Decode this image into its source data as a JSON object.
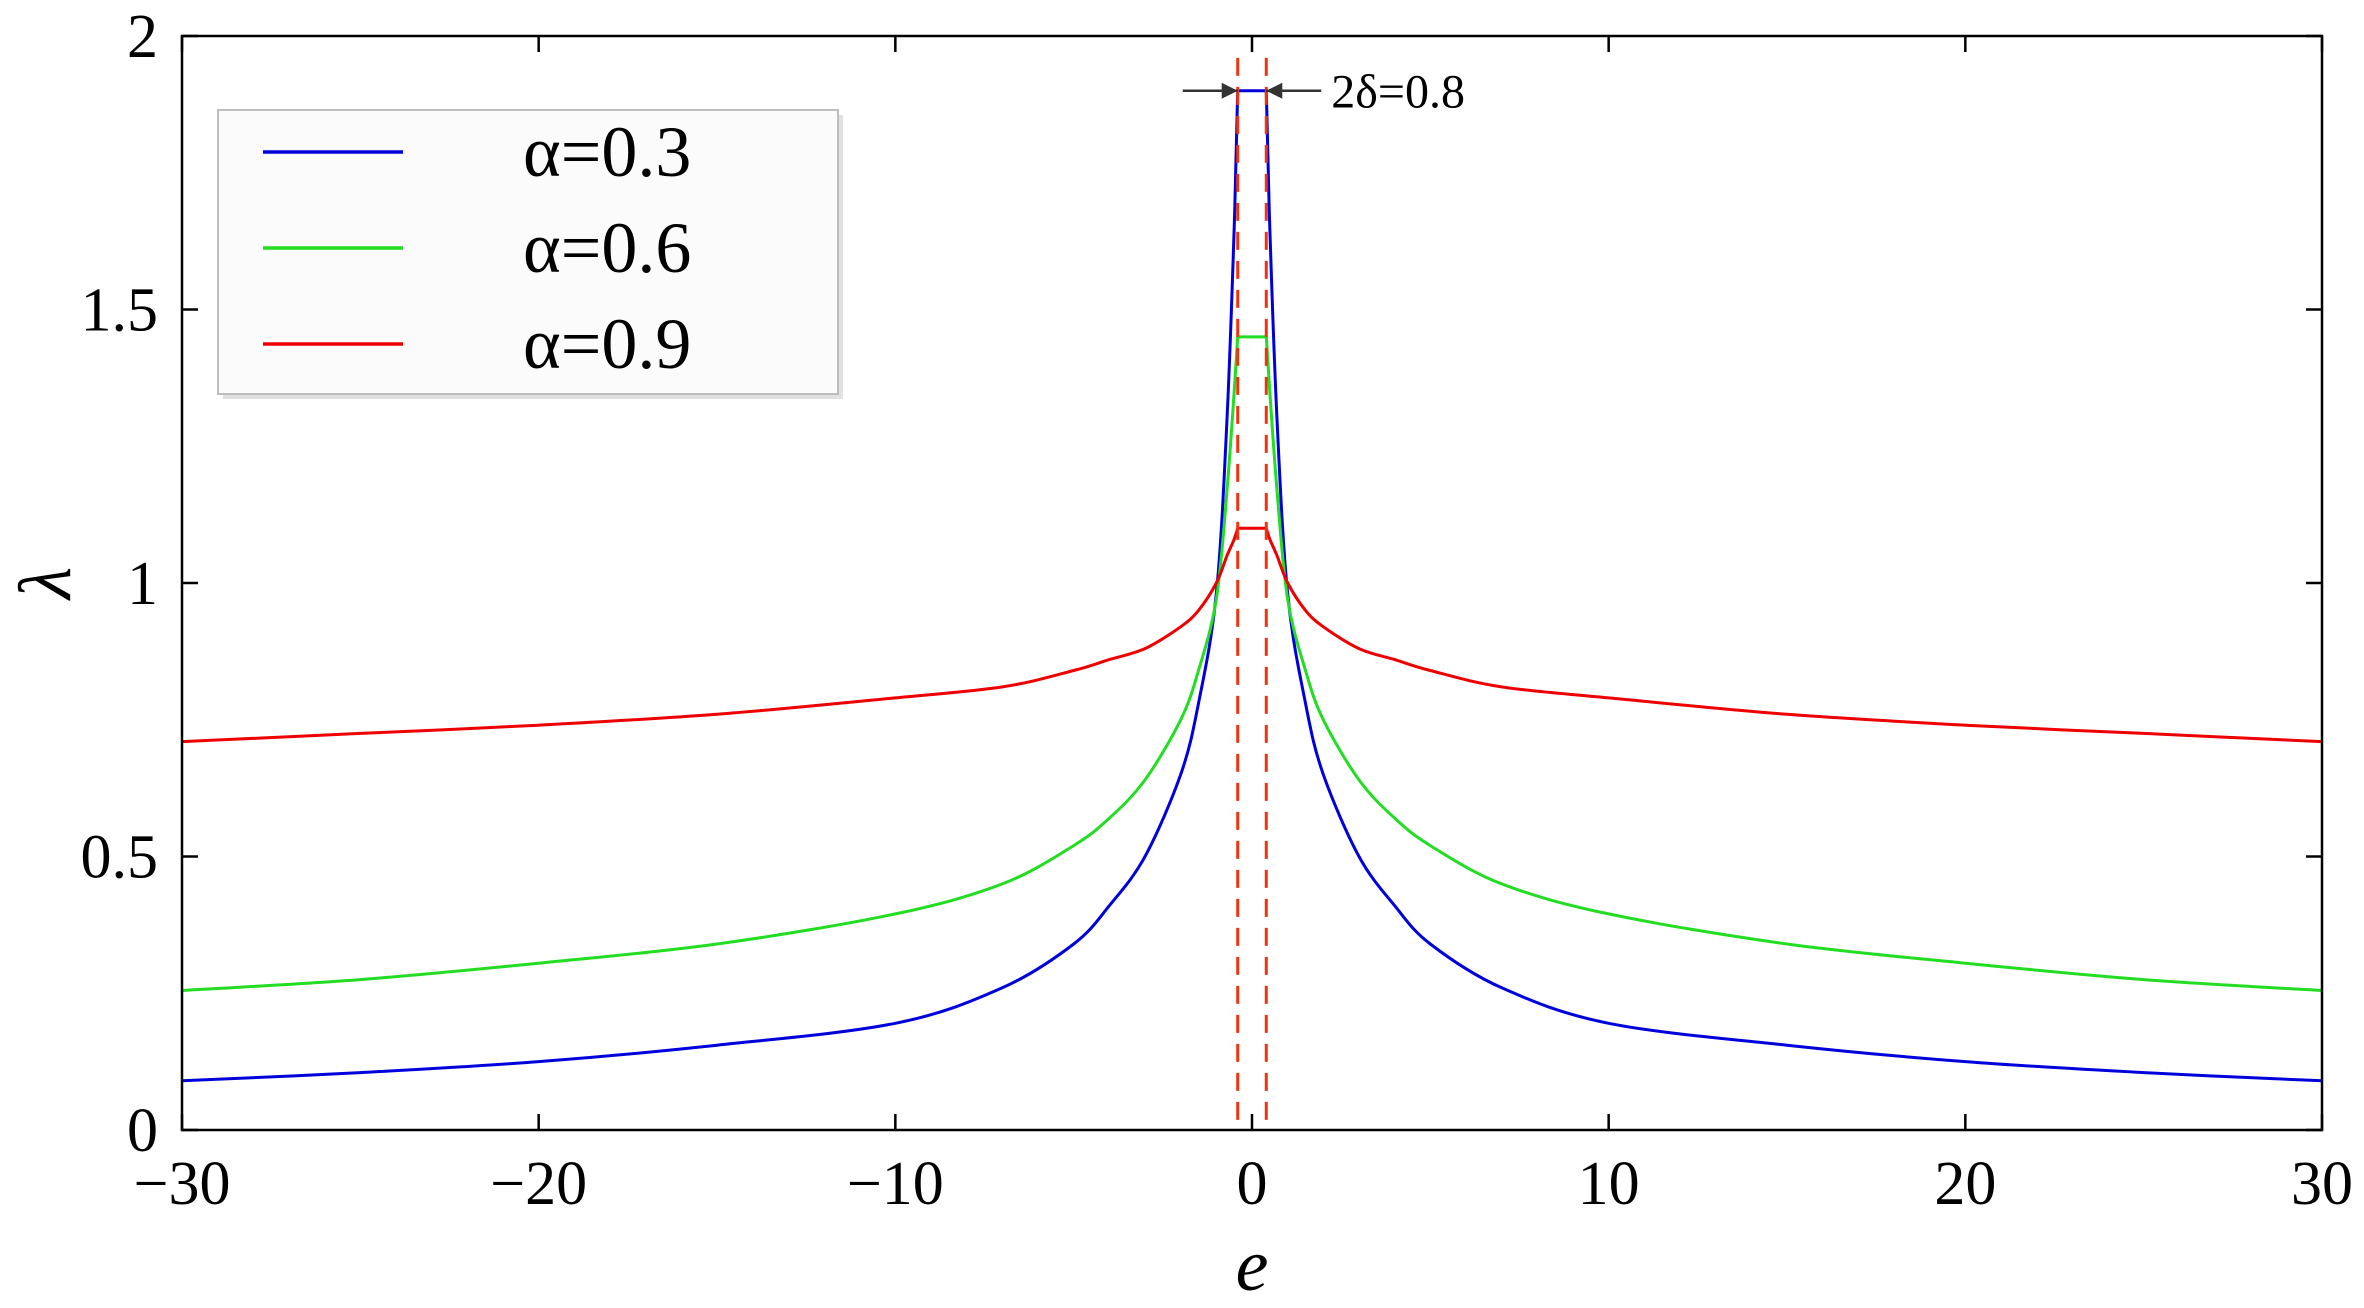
{
  "chart_data": {
    "type": "line",
    "title": "",
    "xlabel": "e",
    "ylabel": "λ",
    "xlim": [
      -30,
      30
    ],
    "ylim": [
      0,
      2
    ],
    "xticks": [
      -30,
      -20,
      -10,
      0,
      10,
      20,
      30
    ],
    "xtick_labels": [
      "−30",
      "−20",
      "−10",
      "0",
      "10",
      "20",
      "30"
    ],
    "yticks": [
      0,
      0.5,
      1,
      1.5,
      2
    ],
    "ytick_labels": [
      "0",
      "0.5",
      "1",
      "1.5",
      "2"
    ],
    "grid": false,
    "legend_position": "top-left",
    "delta": 0.4,
    "annotation": "2δ=0.8",
    "series": [
      {
        "name": "α=0.3",
        "color": "#0000dd",
        "style": "solid",
        "x": [
          -30,
          -25,
          -20,
          -15,
          -10,
          -7,
          -5,
          -4,
          -3,
          -2,
          -1.5,
          -1,
          -0.7,
          -0.5,
          -0.4,
          0.4,
          0.5,
          0.7,
          1,
          1.5,
          2,
          3,
          4,
          5,
          7,
          10,
          15,
          20,
          25,
          30
        ],
        "y": [
          0.09,
          0.105,
          0.125,
          0.155,
          0.195,
          0.26,
          0.34,
          0.41,
          0.5,
          0.65,
          0.78,
          0.98,
          1.3,
          1.65,
          1.9,
          1.9,
          1.65,
          1.3,
          0.98,
          0.78,
          0.65,
          0.5,
          0.41,
          0.34,
          0.26,
          0.195,
          0.155,
          0.125,
          0.105,
          0.09
        ]
      },
      {
        "name": "α=0.6",
        "color": "#22dd22",
        "style": "solid",
        "x": [
          -30,
          -25,
          -20,
          -15,
          -10,
          -7,
          -5,
          -4,
          -3,
          -2,
          -1.5,
          -1,
          -0.7,
          -0.5,
          -0.4,
          0.4,
          0.5,
          0.7,
          1,
          1.5,
          2,
          3,
          4,
          5,
          7,
          10,
          15,
          20,
          25,
          30
        ],
        "y": [
          0.255,
          0.275,
          0.305,
          0.34,
          0.395,
          0.45,
          0.52,
          0.57,
          0.64,
          0.75,
          0.84,
          0.97,
          1.17,
          1.35,
          1.45,
          1.45,
          1.35,
          1.17,
          0.97,
          0.84,
          0.75,
          0.64,
          0.57,
          0.52,
          0.45,
          0.395,
          0.34,
          0.305,
          0.275,
          0.255
        ]
      },
      {
        "name": "α=0.9",
        "color": "#ee0000",
        "style": "solid",
        "x": [
          -30,
          -25,
          -20,
          -15,
          -10,
          -7,
          -5,
          -4,
          -3,
          -2,
          -1.5,
          -1,
          -0.7,
          -0.5,
          -0.4,
          0.4,
          0.5,
          0.7,
          1,
          1.5,
          2,
          3,
          4,
          5,
          7,
          10,
          15,
          20,
          25,
          30
        ],
        "y": [
          0.71,
          0.725,
          0.74,
          0.76,
          0.79,
          0.81,
          0.84,
          0.86,
          0.88,
          0.92,
          0.95,
          1.0,
          1.05,
          1.08,
          1.1,
          1.1,
          1.08,
          1.05,
          1.0,
          0.95,
          0.92,
          0.88,
          0.86,
          0.84,
          0.81,
          0.79,
          0.76,
          0.74,
          0.725,
          0.71
        ]
      }
    ],
    "vlines": [
      {
        "x": -0.4,
        "color": "#ee3311",
        "style": "dashed"
      },
      {
        "x": 0.4,
        "color": "#ee3311",
        "style": "dashed"
      }
    ]
  }
}
